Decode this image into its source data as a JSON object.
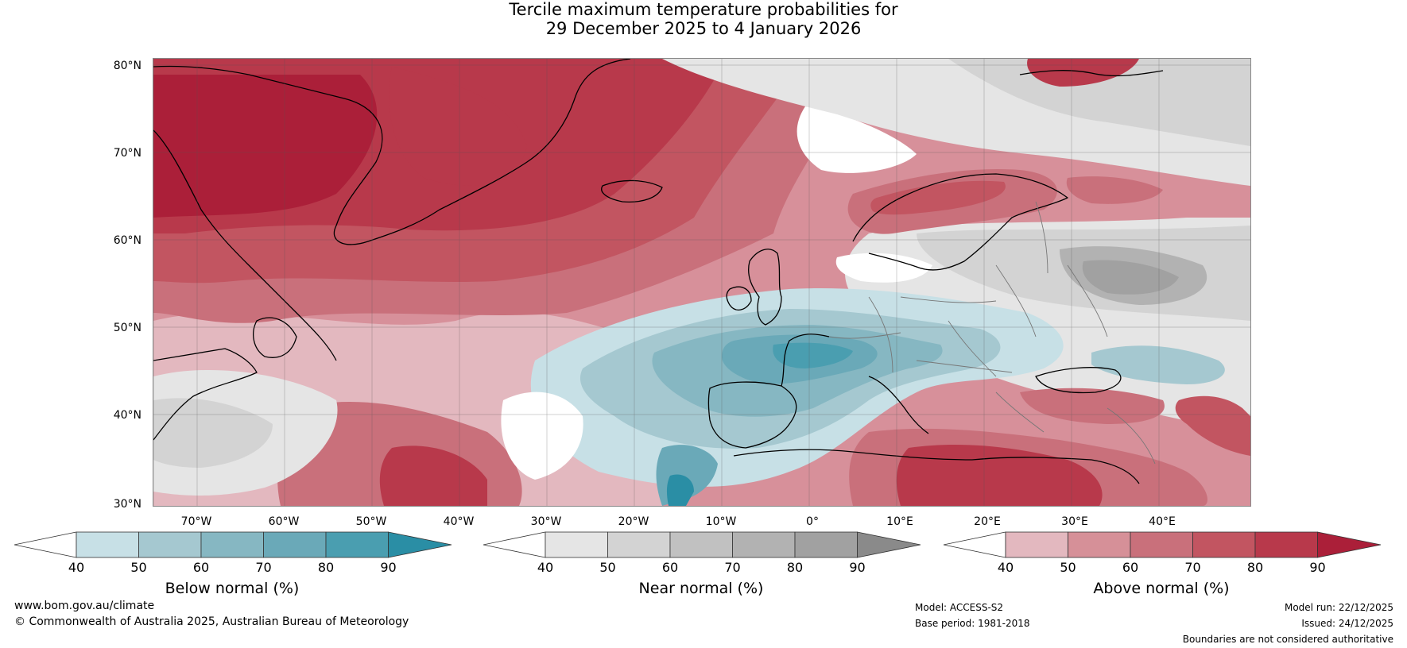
{
  "title": {
    "line1": "Tercile maximum temperature probabilities for",
    "line2": "29 December 2025 to 4 January 2026"
  },
  "map": {
    "lat_labels": [
      "80°N",
      "70°N",
      "60°N",
      "50°N",
      "40°N",
      "30°N"
    ],
    "lon_labels": [
      "70°W",
      "60°W",
      "50°W",
      "40°W",
      "30°W",
      "20°W",
      "10°W",
      "0°",
      "10°E",
      "20°E",
      "30°E",
      "40°E"
    ],
    "colors": {
      "ocean_base": "#d7909a",
      "above_40": "#e3b8bf",
      "above_50": "#d69098",
      "above_60": "#c9707b",
      "above_70": "#c25561",
      "above_80": "#b8394b",
      "above_90": "#ab1f39",
      "below_40": "#c7e0e6",
      "below_50": "#a5c8d0",
      "below_60": "#86b7c2",
      "below_70": "#6aa9b8",
      "below_80": "#4a9eb0",
      "below_90": "#2a8ea5",
      "near_40": "#e5e5e5",
      "near_50": "#d3d3d3",
      "near_60": "#c1c1c1",
      "near_70": "#b2b2b2",
      "near_80": "#a1a1a1",
      "coast": "#000000",
      "border": "#777777",
      "grid": "#555555"
    }
  },
  "legends": [
    {
      "title": "Below normal (%)",
      "ticks": [
        "40",
        "50",
        "60",
        "70",
        "80",
        "90"
      ],
      "colors": [
        "#ffffff",
        "#c7e0e6",
        "#a5c8d0",
        "#86b7c2",
        "#6aa9b8",
        "#4a9eb0",
        "#2a8ea5"
      ]
    },
    {
      "title": "Near normal (%)",
      "ticks": [
        "40",
        "50",
        "60",
        "70",
        "80",
        "90"
      ],
      "colors": [
        "#ffffff",
        "#e5e5e5",
        "#d3d3d3",
        "#c1c1c1",
        "#b2b2b2",
        "#a1a1a1",
        "#8a8a8a"
      ]
    },
    {
      "title": "Above normal (%)",
      "ticks": [
        "40",
        "50",
        "60",
        "70",
        "80",
        "90"
      ],
      "colors": [
        "#ffffff",
        "#e3b8bf",
        "#d69098",
        "#c9707b",
        "#c25561",
        "#b8394b",
        "#ab1f39"
      ]
    }
  ],
  "footer": {
    "website": "www.bom.gov.au/climate",
    "copyright": "© Commonwealth of Australia 2025, Australian Bureau of Meteorology",
    "model": "Model: ACCESS-S2",
    "base_period": "Base period: 1981-2018",
    "model_run": "Model run: 22/12/2025",
    "issued": "Issued: 24/12/2025",
    "disclaimer": "Boundaries are not considered authoritative"
  }
}
